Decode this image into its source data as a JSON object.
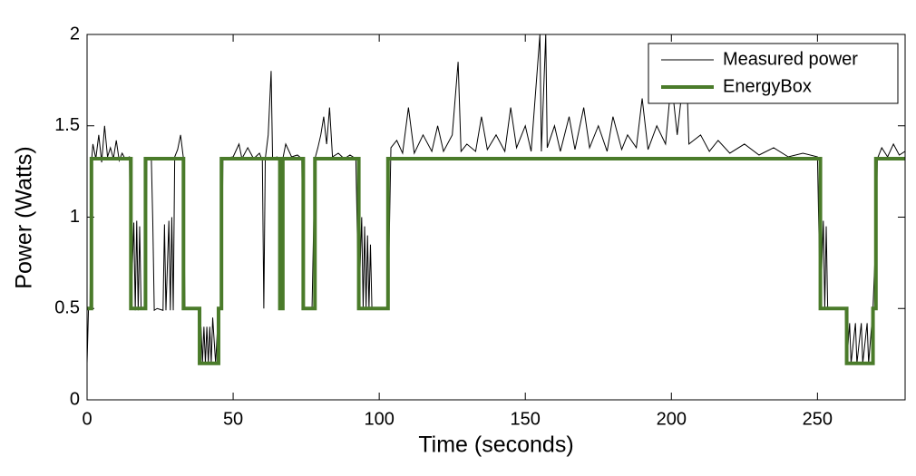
{
  "chart_data": {
    "type": "line",
    "xlabel": "Time (seconds)",
    "ylabel": "Power (Watts)",
    "xlim": [
      0,
      280
    ],
    "ylim": [
      0,
      2
    ],
    "xticks": [
      0,
      50,
      100,
      150,
      200,
      250
    ],
    "yticks": [
      0,
      0.5,
      1,
      1.5,
      2
    ],
    "legend": "upper right",
    "series": [
      {
        "name": "Measured power",
        "color": "#000000",
        "width": 1,
        "x": [
          0,
          0.5,
          1,
          1.5,
          2,
          3,
          4,
          5,
          6,
          7,
          8,
          9,
          10,
          11,
          12,
          13,
          14.5,
          15,
          16,
          16.5,
          17,
          17.5,
          18,
          18.5,
          20,
          20.5,
          22,
          22.5,
          23,
          24,
          26,
          26.5,
          27,
          28,
          28.5,
          29,
          29.5,
          30,
          31,
          32,
          33,
          33.5,
          38,
          38.5,
          39,
          39.5,
          40,
          40.5,
          41,
          41.5,
          42,
          42.5,
          43,
          44,
          45,
          46,
          46.5,
          50,
          52,
          53,
          55,
          57,
          59,
          60,
          60.5,
          61,
          62,
          63,
          63.5,
          65,
          66,
          66.5,
          67,
          68,
          70,
          72,
          73.5,
          74,
          77,
          78,
          79,
          80,
          81,
          82,
          83,
          84,
          86,
          88,
          90,
          92,
          93,
          94,
          94.5,
          95,
          95.5,
          96,
          96.5,
          97,
          97.5,
          100,
          103,
          104,
          106,
          108,
          110,
          112,
          115,
          118,
          120,
          122,
          125,
          127,
          128,
          130,
          133,
          135,
          137,
          140,
          143,
          145,
          147,
          150,
          152,
          155,
          155.5,
          157,
          157.5,
          160,
          162,
          165,
          167,
          170,
          172,
          175,
          178,
          180,
          183,
          185,
          188,
          190,
          192,
          195,
          198,
          200,
          202,
          205,
          206,
          210,
          213,
          216,
          220,
          225,
          230,
          235,
          240,
          245,
          250,
          251,
          252,
          252.5,
          253,
          253.5,
          255,
          258,
          259.5,
          260,
          261,
          261.5,
          263,
          263.5,
          265,
          265.5,
          267,
          267.5,
          269,
          270,
          270.5,
          272,
          274,
          276,
          278,
          280
        ],
        "values": [
          0.2,
          0.5,
          0.5,
          1.3,
          1.4,
          1.32,
          1.45,
          1.3,
          1.5,
          1.33,
          1.38,
          1.32,
          1.42,
          1.31,
          1.35,
          1.32,
          1.33,
          0.5,
          0.97,
          0.49,
          0.98,
          0.49,
          0.95,
          0.5,
          0.5,
          1.32,
          1.32,
          0.97,
          0.49,
          0.5,
          0.49,
          0.96,
          0.49,
          0.98,
          0.49,
          1.0,
          0.49,
          1.33,
          1.37,
          1.45,
          1.32,
          0.5,
          0.5,
          0.2,
          0.4,
          0.2,
          0.4,
          0.2,
          0.4,
          0.2,
          0.4,
          0.2,
          0.45,
          0.2,
          0.5,
          0.5,
          1.32,
          1.33,
          1.4,
          1.32,
          1.38,
          1.32,
          1.35,
          1.31,
          0.5,
          1.32,
          1.45,
          1.8,
          1.32,
          1.33,
          1.32,
          0.5,
          1.32,
          1.4,
          1.33,
          1.34,
          1.32,
          0.5,
          0.5,
          1.32,
          1.38,
          1.45,
          1.55,
          1.4,
          1.6,
          1.33,
          1.35,
          1.32,
          1.34,
          1.32,
          0.5,
          1.0,
          0.5,
          0.95,
          0.5,
          0.9,
          0.5,
          0.85,
          0.5,
          0.5,
          0.5,
          1.38,
          1.42,
          1.35,
          1.6,
          1.35,
          1.45,
          1.36,
          1.5,
          1.36,
          1.45,
          1.85,
          1.36,
          1.4,
          1.36,
          1.55,
          1.37,
          1.45,
          1.36,
          1.6,
          1.38,
          1.5,
          1.36,
          2,
          1.36,
          2,
          1.38,
          1.5,
          1.36,
          1.55,
          1.37,
          1.6,
          1.38,
          1.5,
          1.36,
          1.55,
          1.37,
          1.45,
          1.38,
          1.65,
          1.37,
          1.5,
          1.4,
          1.75,
          1.45,
          1.9,
          1.4,
          1.45,
          1.36,
          1.42,
          1.35,
          1.4,
          1.34,
          1.38,
          1.33,
          1.35,
          1.33,
          0.5,
          0.98,
          0.5,
          0.95,
          0.5,
          0.5,
          0.5,
          0.5,
          0.2,
          0.42,
          0.2,
          0.42,
          0.2,
          0.42,
          0.2,
          0.42,
          0.2,
          0.5,
          0.9,
          1.32,
          1.38,
          1.33,
          1.4,
          1.34,
          1.36
        ]
      },
      {
        "name": "EnergyBox",
        "color": "#4a7b2a",
        "width": 4,
        "x": [
          0,
          1.5,
          1.5,
          15,
          15,
          20,
          20,
          33,
          33,
          38.5,
          38.5,
          45,
          45,
          46,
          46,
          66,
          66,
          67,
          67,
          74,
          74,
          78,
          78,
          93,
          93,
          103,
          103,
          251,
          251,
          260,
          260,
          269,
          269,
          270,
          270,
          280
        ],
        "values": [
          0.5,
          0.5,
          1.32,
          1.32,
          0.5,
          0.5,
          1.32,
          1.32,
          0.5,
          0.5,
          0.2,
          0.2,
          0.5,
          0.5,
          1.32,
          1.32,
          0.5,
          0.5,
          1.32,
          1.32,
          0.5,
          0.5,
          1.32,
          1.32,
          0.5,
          0.5,
          1.32,
          1.32,
          0.5,
          0.5,
          0.2,
          0.2,
          0.5,
          0.5,
          1.32,
          1.32
        ]
      }
    ]
  }
}
